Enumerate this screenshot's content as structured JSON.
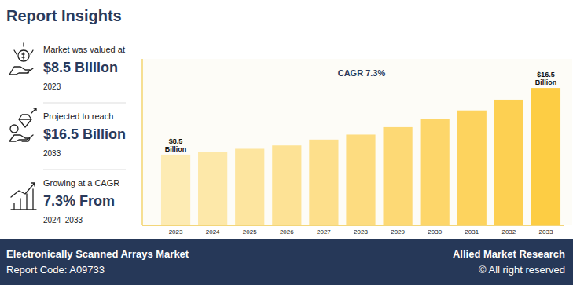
{
  "header": {
    "title": "Report Insights"
  },
  "insights": [
    {
      "label": "Market was valued at",
      "value": "$8.5 Billion",
      "sub": "2023"
    },
    {
      "label": "Projected to reach",
      "value": "$16.5 Billion",
      "sub": "2033"
    },
    {
      "label": "Growing at a CAGR",
      "value": "7.3% From",
      "sub": "2024–2033"
    }
  ],
  "chart_data": {
    "type": "bar",
    "annotation": "CAGR 7.3%",
    "categories": [
      "2023",
      "2024",
      "2025",
      "2026",
      "2027",
      "2028",
      "2029",
      "2030",
      "2031",
      "2032",
      "2033"
    ],
    "values": [
      8.5,
      8.8,
      9.2,
      9.6,
      10.3,
      10.9,
      11.8,
      12.8,
      13.8,
      15.1,
      16.5
    ],
    "value_labels": [
      "$8.5\nBillion",
      null,
      null,
      null,
      null,
      null,
      null,
      null,
      null,
      null,
      "$16.5\nBillion"
    ],
    "data_labels": true,
    "colors": [
      "#fdebb3",
      "#fde8a9",
      "#fde59f",
      "#fde295",
      "#fddf8b",
      "#fddc80",
      "#fdd975",
      "#fdd66a",
      "#fdd35e",
      "#fdd052",
      "#fdcd44"
    ],
    "ylim": [
      0,
      20
    ],
    "tick_labels": "x",
    "grid": false
  },
  "footer": {
    "title": "Electronically Scanned Arrays Market",
    "code": "Report Code: A09733",
    "brand": "Allied Market Research",
    "rights": "© All right reserved"
  }
}
